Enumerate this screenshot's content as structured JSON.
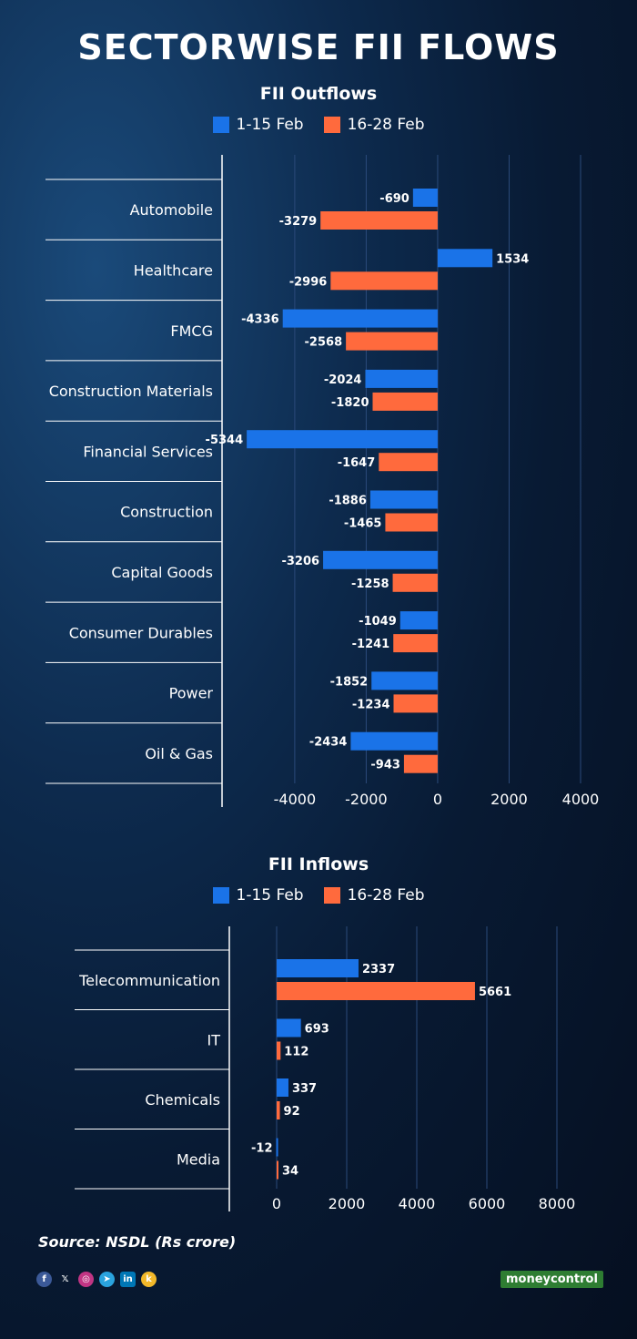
{
  "title": "SECTORWISE FII FLOWS",
  "colors": {
    "series1": "#1a73e8",
    "series2": "#ff6a3d"
  },
  "source": "Source: NSDL (Rs crore)",
  "brand": "moneycontrol",
  "social_icons": [
    "facebook-icon",
    "x-icon",
    "instagram-icon",
    "telegram-icon",
    "linkedin-icon",
    "koo-icon"
  ],
  "chart_data": [
    {
      "type": "bar",
      "orientation": "horizontal",
      "title": "FII Outflows",
      "categories": [
        "Automobile",
        "Healthcare",
        "FMCG",
        "Construction Materials",
        "Financial Services",
        "Construction",
        "Capital Goods",
        "Consumer Durables",
        "Power",
        "Oil & Gas"
      ],
      "series": [
        {
          "name": "1-15 Feb",
          "values": [
            -690,
            1534,
            -4336,
            -2024,
            -5344,
            -1886,
            -3206,
            -1049,
            -1852,
            -2434
          ]
        },
        {
          "name": "16-28 Feb",
          "values": [
            -3279,
            -2996,
            -2568,
            -1820,
            -1647,
            -1465,
            -1258,
            -1241,
            -1234,
            -943
          ]
        }
      ],
      "ticks": [
        -4000,
        -2000,
        0,
        2000,
        4000
      ],
      "tick_labels": [
        "-4000",
        "-2000",
        "0",
        "2000",
        "4000"
      ],
      "xlim": [
        -5500,
        4000
      ],
      "legend": "top-center",
      "grid": true
    },
    {
      "type": "bar",
      "orientation": "horizontal",
      "title": "FII Inflows",
      "categories": [
        "Telecommunication",
        "IT",
        "Chemicals",
        "Media"
      ],
      "series": [
        {
          "name": "1-15 Feb",
          "values": [
            2337,
            693,
            337,
            -12
          ]
        },
        {
          "name": "16-28 Feb",
          "values": [
            5661,
            112,
            92,
            34
          ]
        }
      ],
      "ticks": [
        0,
        2000,
        4000,
        6000,
        8000
      ],
      "tick_labels": [
        "0",
        "2000",
        "4000",
        "6000",
        "8000"
      ],
      "xlim": [
        0,
        8000
      ],
      "legend": "top-center",
      "grid": true
    }
  ]
}
